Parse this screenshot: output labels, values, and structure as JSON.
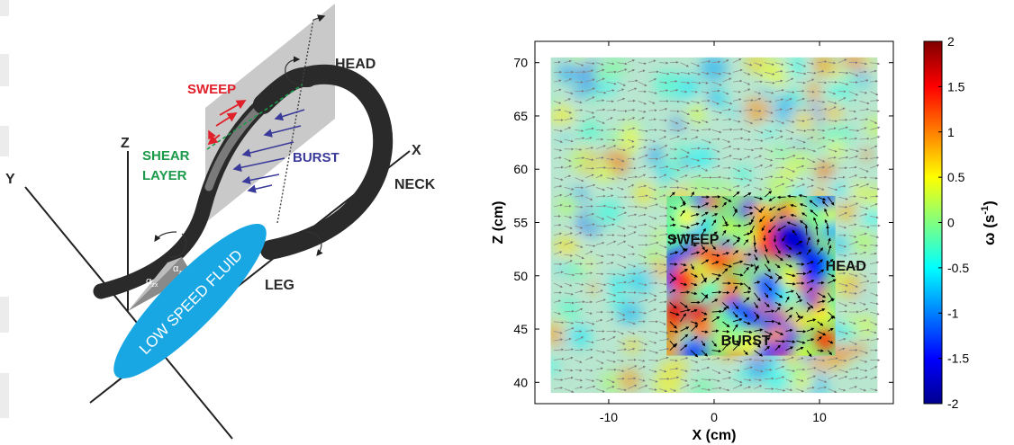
{
  "schematic": {
    "labels": {
      "head": "HEAD",
      "sweep": "SWEEP",
      "shear_layer_line1": "SHEAR",
      "shear_layer_line2": "LAYER",
      "burst": "BURST",
      "neck": "NECK",
      "leg": "LEG",
      "low_speed_fluid": "LOW SPEED FLUID",
      "axis_x": "X",
      "axis_y": "Y",
      "axis_z": "Z",
      "alpha_zx": "α",
      "alpha_zx_sub": "zx",
      "alpha_zy": "α",
      "alpha_zy_sub": "zy"
    },
    "colors": {
      "vortex": "#2a2a2a",
      "plane": "#c9c9c9",
      "sweep": "#e0202a",
      "shear_layer": "#1a9a4a",
      "burst": "#3a3a9a",
      "low_speed_fluid": "#19a7e3"
    }
  },
  "plot": {
    "annotations": {
      "sweep": "SWEEP",
      "head": "HEAD",
      "burst": "BURST"
    },
    "colorbar": {
      "label": "ω (s",
      "label_sup": "-1",
      "label_close": ")",
      "ticks": [
        "2",
        "1.5",
        "1",
        "0.5",
        "0",
        "-0.5",
        "-1",
        "-1.5",
        "-2"
      ]
    }
  },
  "chart_data": {
    "type": "heatmap",
    "xlabel": "X (cm)",
    "ylabel": "Z (cm)",
    "xlim": [
      -17,
      17
    ],
    "ylim": [
      38,
      72
    ],
    "xticks": [
      -10,
      0,
      10
    ],
    "xtick_labels": [
      "-10",
      "0",
      "10"
    ],
    "yticks": [
      40,
      45,
      50,
      55,
      60,
      65,
      70
    ],
    "ytick_labels": [
      "40",
      "45",
      "50",
      "55",
      "60",
      "65",
      "70"
    ],
    "field_extent": {
      "x": [
        -15.5,
        15.5
      ],
      "z": [
        39,
        70.5
      ]
    },
    "highlight_window": {
      "x": [
        -4.5,
        11.5
      ],
      "z": [
        42.5,
        57.5
      ]
    },
    "colorbar_range": [
      -2,
      2
    ],
    "colormap": "jet",
    "grid": false,
    "legend": "colorbar right",
    "features": [
      {
        "name": "SWEEP",
        "x": -2,
        "z": 53.5
      },
      {
        "name": "HEAD",
        "x": 12.5,
        "z": 51
      },
      {
        "name": "BURST",
        "x": 3,
        "z": 44
      }
    ]
  }
}
